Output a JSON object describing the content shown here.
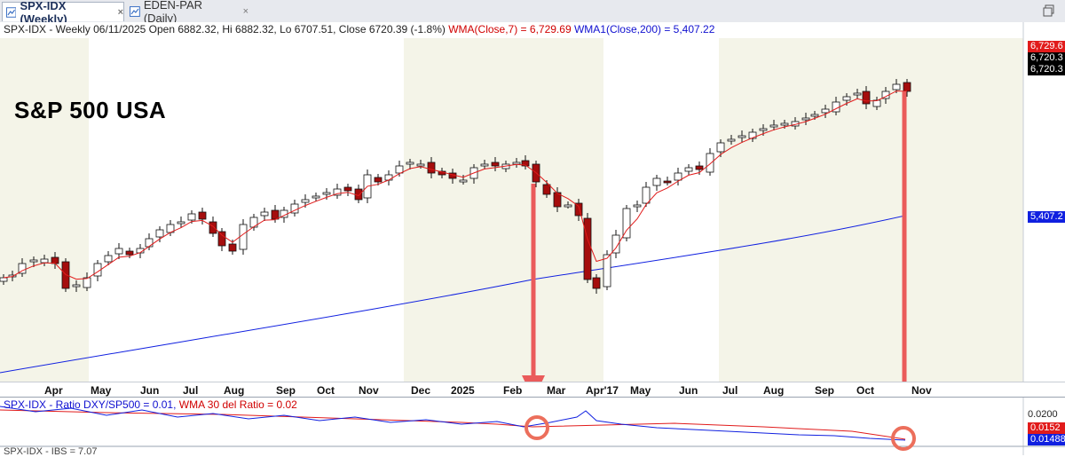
{
  "tabs": [
    {
      "label": "SPX-IDX (Weekly)",
      "active": true
    },
    {
      "label": "EDEN-PAR (Daily)",
      "active": false
    }
  ],
  "close_symbol": "×",
  "main_chart": {
    "info": {
      "prefix": "SPX-IDX - Weekly 06/11/2025 Open 6882.32, Hi 6882.32, Lo 6707.51, Close 6720.39 (-1.8%)",
      "wma_short": "WMA(Close,7) = 6,729.69",
      "wma_long": "WMA1(Close,200) = 5,407.22"
    },
    "annotation_title": "S&P 500 USA",
    "price_labels": [
      {
        "text": "6,729.6",
        "color": "#e11b1b"
      },
      {
        "text": "6,720.3",
        "color": "#000000"
      },
      {
        "text": "6,720.3",
        "color": "#000000"
      },
      {
        "text": "5,407.2",
        "color": "#1020e0"
      }
    ],
    "x_axis_labels": [
      "Apr",
      "May",
      "Jun",
      "Jul",
      "Aug",
      "Sep",
      "Oct",
      "Nov",
      "Dec",
      "2025",
      "Feb",
      "Mar",
      "Apr'17",
      "May",
      "Jun",
      "Jul",
      "Aug",
      "Sep",
      "Oct",
      "Nov"
    ]
  },
  "lower_panel": {
    "info": {
      "prefix": "SPX-IDX - Ratio DXY/SP500 = 0.01, ",
      "wma": "WMA 30 del Ratio = 0.02"
    },
    "y_tick": "0.0200",
    "value_labels": [
      {
        "text": "0.0152",
        "color": "#e11b1b"
      },
      {
        "text": "0.01488",
        "color": "#1020e0"
      }
    ],
    "next_panel_label": "SPX-IDX - IBS = 7.07"
  },
  "chart_data": {
    "type": "candlestick",
    "title": "S&P 500 USA",
    "timeframe": "Weekly",
    "symbol": "SPX-IDX",
    "last_bar": {
      "date": "06/11/2025",
      "open": 6882.32,
      "high": 6882.32,
      "low": 6707.51,
      "close": 6720.39,
      "change_pct": -1.8
    },
    "indicators": [
      {
        "name": "WMA(Close,7)",
        "value": 6729.69,
        "color": "#e11b1b"
      },
      {
        "name": "WMA1(Close,200)",
        "value": 5407.22,
        "color": "#1020e0"
      }
    ],
    "x_labels": [
      "Apr",
      "May",
      "Jun",
      "Jul",
      "Aug",
      "Sep",
      "Oct",
      "Nov",
      "Dec",
      "2025",
      "Feb",
      "Mar",
      "Apr'17",
      "May",
      "Jun",
      "Jul",
      "Aug",
      "Sep",
      "Oct",
      "Nov"
    ],
    "lower_panel": {
      "series": [
        {
          "name": "Ratio DXY/SP500",
          "value": 0.01488,
          "color": "#1020e0"
        },
        {
          "name": "WMA 30 del Ratio",
          "value": 0.0152,
          "color": "#e11b1b"
        }
      ],
      "y_tick": 0.02
    },
    "annotations": [
      "red arrows from price peaks to ratio panel",
      "orange circles on ratio line"
    ]
  },
  "colors": {
    "bull": "#ffffff",
    "bear": "#a50d0d",
    "wma_short": "#e11b1b",
    "wma_long": "#1020e0",
    "arrow": "#ea5b5b",
    "circle": "#ec6f5c",
    "shade": "#f4f4e8"
  }
}
